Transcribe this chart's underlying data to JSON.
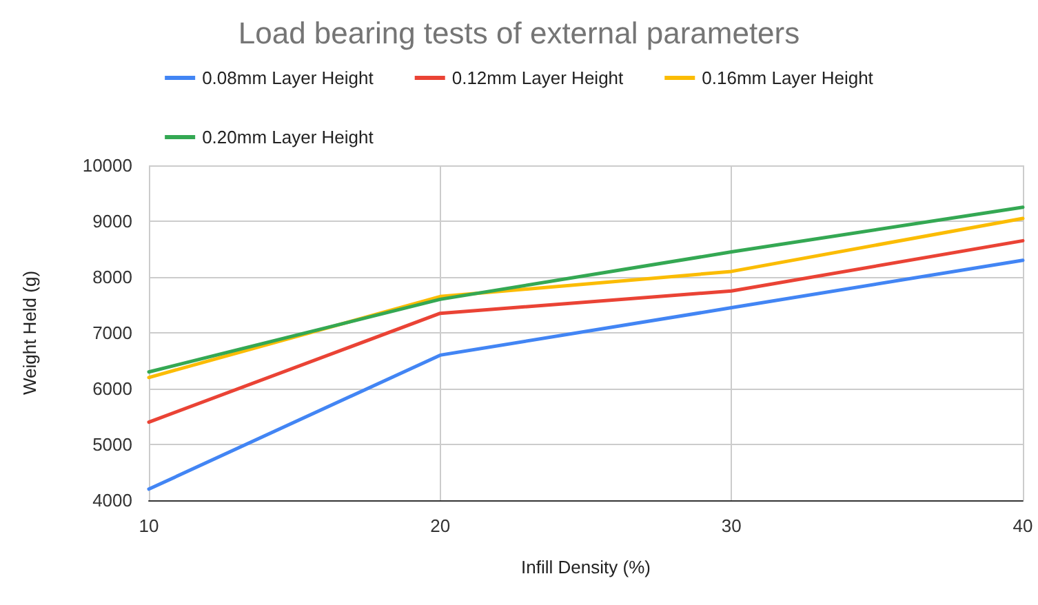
{
  "chart_data": {
    "type": "line",
    "title": "Load bearing tests of external parameters",
    "xlabel": "Infill Density (%)",
    "ylabel": "Weight Held (g)",
    "x": [
      10,
      20,
      30,
      40
    ],
    "series": [
      {
        "name": "0.08mm Layer Height",
        "color": "#4285f4",
        "values": [
          4200,
          6600,
          7450,
          8300
        ]
      },
      {
        "name": "0.12mm Layer Height",
        "color": "#ea4335",
        "values": [
          5400,
          7350,
          7750,
          8650
        ]
      },
      {
        "name": "0.16mm Layer Height",
        "color": "#fbbc04",
        "values": [
          6200,
          7650,
          8100,
          9050
        ]
      },
      {
        "name": "0.20mm Layer Height",
        "color": "#34a853",
        "values": [
          6300,
          7600,
          8450,
          9250
        ]
      }
    ],
    "xlim": [
      10,
      40
    ],
    "xticks": [
      10,
      20,
      30,
      40
    ],
    "ylim": [
      4000,
      10000
    ],
    "yticks": [
      4000,
      5000,
      6000,
      7000,
      8000,
      9000,
      10000
    ],
    "grid": true,
    "legend": "top",
    "marker": "none",
    "line_style": "solid"
  }
}
